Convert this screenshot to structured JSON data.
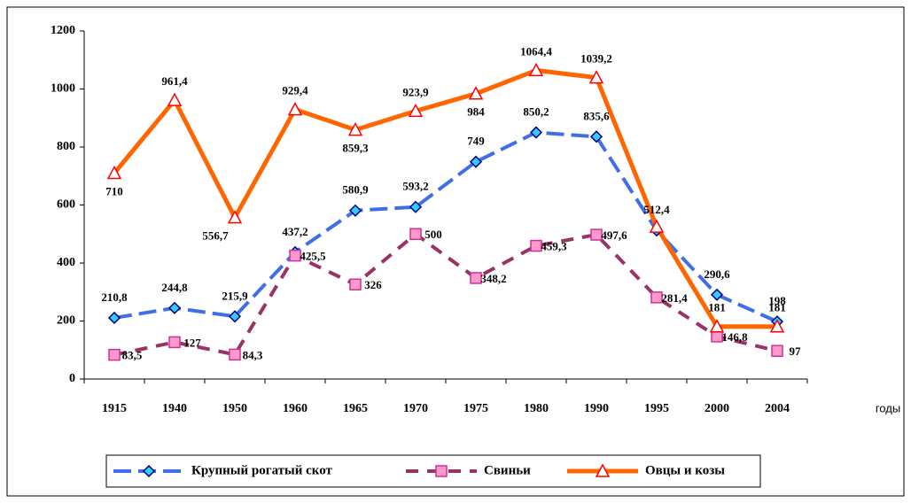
{
  "chart_data": {
    "type": "line",
    "x_label": "годы",
    "categories": [
      "1915",
      "1940",
      "1950",
      "1960",
      "1965",
      "1970",
      "1975",
      "1980",
      "1990",
      "1995",
      "2000",
      "2004"
    ],
    "series": [
      {
        "name": "Крупный рогатый скот",
        "color": "#3f6fe8",
        "marker_color": "#33ccff",
        "values": [
          210.8,
          244.8,
          215.9,
          437.2,
          580.9,
          593.2,
          749,
          850.2,
          835.6,
          512.4,
          290.6,
          198
        ],
        "value_labels": [
          "210,8",
          "244,8",
          "215,9",
          "437,2",
          "580,9",
          "593,2",
          "749",
          "850,2",
          "835,6",
          "512,4",
          "290,6",
          "198"
        ]
      },
      {
        "name": "Свиньи",
        "color": "#993366",
        "marker_color": "#ff99cc",
        "values": [
          83.5,
          127,
          84.3,
          425.5,
          326,
          500,
          348.2,
          459.3,
          497.6,
          281.4,
          146.8,
          97
        ],
        "value_labels": [
          "83,5",
          "127",
          "84,3",
          "425,5",
          "326",
          "500",
          "348,2",
          "459,3",
          "497,6",
          "281,4",
          "146,8",
          "97"
        ]
      },
      {
        "name": "Овцы и козы",
        "color": "#ff6600",
        "marker_color": "#ffffff",
        "values": [
          710,
          961.4,
          556.7,
          929.4,
          859.3,
          923.9,
          984,
          1064.4,
          1039.2,
          525,
          181,
          181
        ],
        "value_labels": [
          "710",
          "961,4",
          "556,7",
          "929,4",
          "859,3",
          "923,9",
          "984",
          "1064,4",
          "1039,2",
          null,
          "181",
          "181"
        ]
      }
    ],
    "ylim": [
      0,
      1200
    ],
    "yticks": [
      0,
      200,
      400,
      600,
      800,
      1000,
      1200
    ],
    "grid": false,
    "legend": "bottom"
  }
}
